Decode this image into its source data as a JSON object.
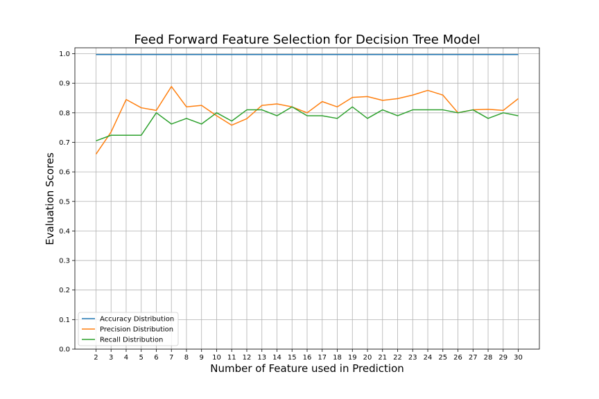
{
  "chart_data": {
    "type": "line",
    "title": "Feed Forward Feature Selection for Decision Tree Model",
    "xlabel": "Number of Feature used in Prediction",
    "ylabel": "Evaluation Scores",
    "x": [
      2,
      3,
      4,
      5,
      6,
      7,
      8,
      9,
      10,
      11,
      12,
      13,
      14,
      15,
      16,
      17,
      18,
      19,
      20,
      21,
      22,
      23,
      24,
      25,
      26,
      27,
      28,
      29,
      30
    ],
    "xlim": [
      0.6,
      31.4
    ],
    "ylim": [
      0.0,
      1.02
    ],
    "yticks": [
      0.0,
      0.1,
      0.2,
      0.3,
      0.4,
      0.5,
      0.6,
      0.7,
      0.8,
      0.9,
      1.0
    ],
    "yticklabels": [
      "0.0",
      "0.1",
      "0.2",
      "0.3",
      "0.4",
      "0.5",
      "0.6",
      "0.7",
      "0.8",
      "0.9",
      "1.0"
    ],
    "grid": true,
    "legend_position": "lower-left",
    "series": [
      {
        "name": "Accuracy Distribution",
        "color": "#1f77b4",
        "values": [
          0.997,
          0.997,
          0.997,
          0.997,
          0.997,
          0.997,
          0.997,
          0.997,
          0.997,
          0.997,
          0.997,
          0.997,
          0.997,
          0.997,
          0.997,
          0.997,
          0.997,
          0.997,
          0.997,
          0.997,
          0.997,
          0.997,
          0.997,
          0.997,
          0.997,
          0.997,
          0.997,
          0.997,
          0.997
        ]
      },
      {
        "name": "Precision Distribution",
        "color": "#ff7f0e",
        "values": [
          0.66,
          0.735,
          0.845,
          0.817,
          0.808,
          0.889,
          0.82,
          0.825,
          0.79,
          0.758,
          0.78,
          0.825,
          0.83,
          0.82,
          0.8,
          0.838,
          0.82,
          0.852,
          0.855,
          0.842,
          0.848,
          0.86,
          0.876,
          0.86,
          0.8,
          0.81,
          0.812,
          0.808,
          0.848
        ]
      },
      {
        "name": "Recall Distribution",
        "color": "#2ca02c",
        "values": [
          0.705,
          0.724,
          0.724,
          0.724,
          0.8,
          0.762,
          0.781,
          0.762,
          0.8,
          0.772,
          0.81,
          0.81,
          0.79,
          0.82,
          0.79,
          0.79,
          0.781,
          0.82,
          0.781,
          0.81,
          0.79,
          0.81,
          0.81,
          0.81,
          0.8,
          0.81,
          0.781,
          0.8,
          0.79
        ]
      }
    ]
  }
}
